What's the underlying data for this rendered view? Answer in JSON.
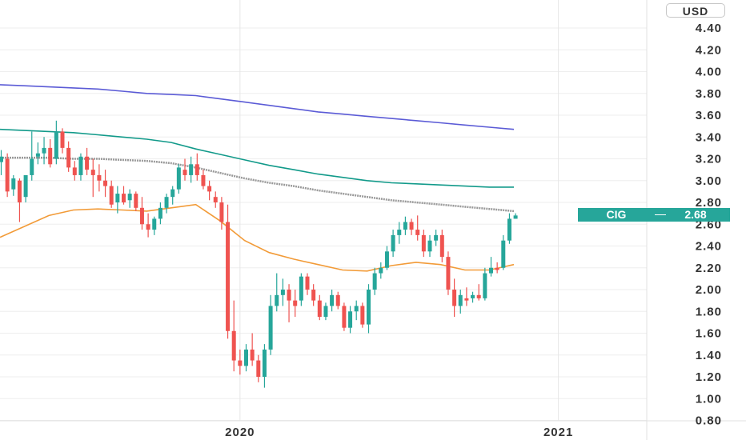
{
  "currency": "USD",
  "symbol_label": {
    "ticker": "CIG",
    "price": "2.68"
  },
  "colors": {
    "up": "#26a69a",
    "down": "#ef5350",
    "ma_blue": "#5b5bd6",
    "ma_teal": "#129a8a",
    "ma_gray": "#999999",
    "ma_orange": "#f29b38",
    "grid": "#eeeeee",
    "axis_text": "#333333"
  },
  "chart_data": {
    "type": "candlestick",
    "title": "",
    "xlabel": "",
    "ylabel": "",
    "ylim": [
      0.8,
      4.56
    ],
    "y_ticks": [
      "0.80",
      "1.00",
      "1.20",
      "1.40",
      "1.60",
      "1.80",
      "2.00",
      "2.20",
      "2.40",
      "2.60",
      "2.80",
      "3.00",
      "3.20",
      "3.40",
      "3.60",
      "3.80",
      "4.00",
      "4.20",
      "4.40"
    ],
    "x_ticks": [
      {
        "label": "2020",
        "week": 39
      },
      {
        "label": "2021",
        "week": 91
      }
    ],
    "grid": true,
    "last_price": 2.68,
    "candles": [
      [
        3.17,
        3.28,
        3.05,
        3.22
      ],
      [
        3.2,
        3.25,
        2.85,
        2.9
      ],
      [
        2.92,
        3.05,
        2.86,
        3.02
      ],
      [
        3.0,
        3.02,
        2.62,
        2.8
      ],
      [
        2.85,
        3.05,
        2.8,
        3.05
      ],
      [
        3.05,
        3.45,
        3.0,
        3.2
      ],
      [
        3.22,
        3.35,
        3.15,
        3.25
      ],
      [
        3.25,
        3.4,
        3.15,
        3.3
      ],
      [
        3.3,
        3.38,
        3.12,
        3.15
      ],
      [
        3.2,
        3.55,
        3.15,
        3.45
      ],
      [
        3.45,
        3.48,
        3.25,
        3.3
      ],
      [
        3.3,
        3.36,
        3.08,
        3.12
      ],
      [
        3.12,
        3.18,
        3.0,
        3.05
      ],
      [
        3.05,
        3.25,
        3.0,
        3.22
      ],
      [
        3.22,
        3.3,
        3.05,
        3.1
      ],
      [
        3.1,
        3.2,
        2.85,
        3.05
      ],
      [
        3.05,
        3.15,
        2.9,
        3.0
      ],
      [
        3.0,
        3.1,
        2.85,
        2.95
      ],
      [
        2.95,
        3.0,
        2.75,
        2.78
      ],
      [
        2.8,
        2.95,
        2.7,
        2.88
      ],
      [
        2.88,
        2.95,
        2.78,
        2.8
      ],
      [
        2.82,
        2.92,
        2.75,
        2.88
      ],
      [
        2.88,
        2.9,
        2.72,
        2.75
      ],
      [
        2.75,
        2.85,
        2.55,
        2.6
      ],
      [
        2.6,
        2.7,
        2.48,
        2.55
      ],
      [
        2.55,
        2.67,
        2.5,
        2.65
      ],
      [
        2.65,
        2.8,
        2.6,
        2.75
      ],
      [
        2.75,
        2.88,
        2.7,
        2.85
      ],
      [
        2.85,
        2.95,
        2.78,
        2.92
      ],
      [
        2.92,
        3.15,
        2.88,
        3.12
      ],
      [
        3.1,
        3.2,
        3.0,
        3.05
      ],
      [
        3.05,
        3.22,
        2.98,
        3.15
      ],
      [
        3.15,
        3.25,
        3.0,
        3.05
      ],
      [
        3.05,
        3.1,
        2.92,
        2.95
      ],
      [
        2.95,
        3.0,
        2.82,
        2.9
      ],
      [
        2.85,
        2.9,
        2.75,
        2.8
      ],
      [
        2.8,
        2.85,
        2.55,
        2.62
      ],
      [
        2.62,
        2.78,
        1.55,
        1.62
      ],
      [
        1.62,
        1.9,
        1.25,
        1.35
      ],
      [
        1.35,
        1.45,
        1.22,
        1.3
      ],
      [
        1.3,
        1.5,
        1.25,
        1.45
      ],
      [
        1.45,
        1.6,
        1.3,
        1.35
      ],
      [
        1.35,
        1.4,
        1.15,
        1.2
      ],
      [
        1.2,
        1.5,
        1.1,
        1.45
      ],
      [
        1.45,
        1.95,
        1.4,
        1.85
      ],
      [
        1.85,
        2.15,
        1.8,
        1.95
      ],
      [
        1.95,
        2.1,
        1.85,
        2.0
      ],
      [
        2.0,
        2.05,
        1.7,
        1.9
      ],
      [
        1.9,
        2.0,
        1.75,
        1.85
      ],
      [
        1.9,
        2.15,
        1.85,
        2.12
      ],
      [
        2.12,
        2.15,
        1.95,
        2.0
      ],
      [
        2.0,
        2.05,
        1.85,
        1.9
      ],
      [
        1.9,
        1.95,
        1.72,
        1.75
      ],
      [
        1.75,
        1.88,
        1.72,
        1.85
      ],
      [
        1.85,
        2.0,
        1.8,
        1.95
      ],
      [
        1.95,
        1.98,
        1.82,
        1.85
      ],
      [
        1.85,
        1.88,
        1.62,
        1.65
      ],
      [
        1.65,
        1.85,
        1.6,
        1.8
      ],
      [
        1.8,
        1.9,
        1.72,
        1.85
      ],
      [
        1.85,
        1.88,
        1.65,
        1.68
      ],
      [
        1.68,
        2.05,
        1.6,
        2.0
      ],
      [
        2.0,
        2.2,
        1.95,
        2.15
      ],
      [
        2.15,
        2.25,
        2.1,
        2.2
      ],
      [
        2.2,
        2.4,
        2.18,
        2.35
      ],
      [
        2.35,
        2.55,
        2.3,
        2.5
      ],
      [
        2.5,
        2.62,
        2.42,
        2.55
      ],
      [
        2.55,
        2.67,
        2.5,
        2.62
      ],
      [
        2.62,
        2.65,
        2.5,
        2.55
      ],
      [
        2.55,
        2.68,
        2.45,
        2.5
      ],
      [
        2.5,
        2.55,
        2.3,
        2.35
      ],
      [
        2.35,
        2.5,
        2.3,
        2.45
      ],
      [
        2.45,
        2.55,
        2.4,
        2.5
      ],
      [
        2.5,
        2.55,
        2.25,
        2.3
      ],
      [
        2.3,
        2.35,
        1.95,
        2.0
      ],
      [
        2.0,
        2.1,
        1.75,
        1.85
      ],
      [
        1.85,
        2.0,
        1.78,
        1.95
      ],
      [
        1.92,
        2.02,
        1.85,
        1.9
      ],
      [
        1.92,
        1.98,
        1.88,
        1.95
      ],
      [
        1.95,
        2.05,
        1.9,
        1.92
      ],
      [
        1.92,
        2.2,
        1.9,
        2.15
      ],
      [
        2.15,
        2.3,
        2.12,
        2.2
      ],
      [
        2.2,
        2.25,
        2.15,
        2.18
      ],
      [
        2.2,
        2.5,
        2.18,
        2.45
      ],
      [
        2.45,
        2.7,
        2.42,
        2.65
      ],
      [
        2.65,
        2.7,
        2.65,
        2.68
      ]
    ],
    "series": [
      {
        "values": [
          3.88,
          3.87,
          3.86,
          3.85,
          3.84,
          3.82,
          3.8,
          3.79,
          3.78,
          3.75,
          3.72,
          3.69,
          3.66,
          3.63,
          3.61,
          3.59,
          3.57,
          3.55,
          3.53,
          3.51,
          3.49,
          3.47
        ]
      },
      {
        "values": [
          3.47,
          3.46,
          3.45,
          3.44,
          3.42,
          3.4,
          3.38,
          3.35,
          3.29,
          3.24,
          3.19,
          3.14,
          3.1,
          3.06,
          3.03,
          3.0,
          2.98,
          2.97,
          2.96,
          2.95,
          2.94,
          2.94
        ]
      },
      {
        "values": [
          3.21,
          3.21,
          3.21,
          3.2,
          3.2,
          3.19,
          3.18,
          3.16,
          3.12,
          3.07,
          3.02,
          2.98,
          2.95,
          2.91,
          2.88,
          2.85,
          2.82,
          2.8,
          2.78,
          2.76,
          2.74,
          2.72
        ]
      },
      {
        "values": [
          2.48,
          2.58,
          2.68,
          2.73,
          2.74,
          2.73,
          2.72,
          2.75,
          2.78,
          2.63,
          2.45,
          2.34,
          2.28,
          2.23,
          2.18,
          2.17,
          2.22,
          2.25,
          2.23,
          2.18,
          2.18,
          2.23
        ]
      }
    ]
  }
}
